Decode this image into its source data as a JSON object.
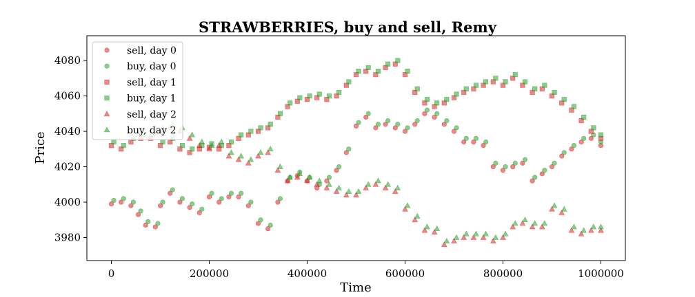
{
  "chart_data": {
    "type": "scatter",
    "title": "STRAWBERRIES, buy and sell, Remy",
    "xlabel": "Time",
    "ylabel": "Price",
    "xlim": [
      -50000,
      1050000
    ],
    "ylim": [
      3967,
      4094
    ],
    "xticks": [
      0,
      200000,
      400000,
      600000,
      800000,
      1000000
    ],
    "xtick_labels": [
      "0",
      "200000",
      "400000",
      "600000",
      "800000",
      "1000000"
    ],
    "yticks": [
      3980,
      4000,
      4020,
      4040,
      4060,
      4080
    ],
    "ytick_labels": [
      "3980",
      "4000",
      "4020",
      "4040",
      "4060",
      "4080"
    ],
    "grid": false,
    "legend_position": "upper-left",
    "colors": {
      "sell": "#d62728",
      "buy": "#2ca02c"
    },
    "series": [
      {
        "name": "sell, day 0",
        "marker": "circle",
        "color": "#d62728",
        "x": [
          0,
          20000,
          40000,
          55000,
          70000,
          90000,
          100000,
          120000,
          140000,
          160000,
          180000,
          200000,
          220000,
          240000,
          260000,
          280000,
          300000,
          320000,
          340000,
          360000,
          380000,
          400000,
          420000,
          440000,
          460000,
          480000,
          500000,
          520000,
          540000,
          560000,
          580000,
          600000,
          620000,
          640000,
          660000,
          680000,
          700000,
          720000,
          740000,
          760000,
          780000,
          800000,
          820000,
          840000,
          860000,
          880000,
          900000,
          920000,
          940000,
          960000,
          980000,
          1000000
        ],
        "y": [
          3999,
          4000,
          3998,
          3993,
          3987,
          3986,
          3998,
          4005,
          4000,
          3997,
          3994,
          4003,
          4000,
          4003,
          4003,
          3998,
          3988,
          3985,
          4000,
          4012,
          4015,
          4012,
          4008,
          4012,
          4018,
          4028,
          4043,
          4048,
          4042,
          4044,
          4042,
          4040,
          4044,
          4050,
          4048,
          4044,
          4040,
          4034,
          4034,
          4032,
          4020,
          4018,
          4020,
          4022,
          4012,
          4016,
          4020,
          4026,
          4030,
          4034,
          4036,
          4032
        ]
      },
      {
        "name": "buy, day 0",
        "marker": "circle",
        "color": "#2ca02c",
        "x": [
          5000,
          25000,
          45000,
          60000,
          75000,
          95000,
          105000,
          125000,
          145000,
          165000,
          185000,
          205000,
          225000,
          245000,
          265000,
          285000,
          305000,
          325000,
          345000,
          365000,
          385000,
          405000,
          425000,
          445000,
          465000,
          485000,
          505000,
          525000,
          545000,
          565000,
          585000,
          605000,
          625000,
          645000,
          665000,
          685000,
          705000,
          725000,
          745000,
          765000,
          785000,
          805000,
          825000,
          845000,
          865000,
          885000,
          905000,
          925000,
          945000,
          965000,
          985000,
          1000000
        ],
        "y": [
          4001,
          4002,
          4000,
          3995,
          3989,
          3988,
          4000,
          4007,
          4002,
          3999,
          3996,
          4005,
          4002,
          4005,
          4005,
          4000,
          3990,
          3987,
          4002,
          4014,
          4017,
          4014,
          4010,
          4014,
          4020,
          4030,
          4045,
          4050,
          4044,
          4046,
          4044,
          4042,
          4046,
          4052,
          4050,
          4046,
          4042,
          4036,
          4036,
          4034,
          4022,
          4020,
          4022,
          4024,
          4014,
          4018,
          4022,
          4028,
          4032,
          4036,
          4038,
          4034
        ]
      },
      {
        "name": "sell, day 1",
        "marker": "square",
        "color": "#d62728",
        "x": [
          0,
          20000,
          40000,
          60000,
          80000,
          100000,
          120000,
          140000,
          160000,
          180000,
          200000,
          220000,
          240000,
          260000,
          280000,
          300000,
          320000,
          340000,
          360000,
          380000,
          400000,
          420000,
          440000,
          460000,
          480000,
          500000,
          520000,
          540000,
          560000,
          580000,
          600000,
          620000,
          640000,
          660000,
          680000,
          700000,
          720000,
          740000,
          760000,
          780000,
          800000,
          820000,
          840000,
          860000,
          880000,
          900000,
          920000,
          940000,
          960000,
          980000,
          1000000
        ],
        "y": [
          4032,
          4030,
          4034,
          4036,
          4036,
          4032,
          4034,
          4030,
          4028,
          4030,
          4031,
          4030,
          4032,
          4036,
          4038,
          4040,
          4042,
          4048,
          4054,
          4057,
          4058,
          4059,
          4058,
          4060,
          4066,
          4072,
          4074,
          4072,
          4076,
          4078,
          4072,
          4062,
          4056,
          4054,
          4056,
          4059,
          4062,
          4064,
          4066,
          4068,
          4066,
          4070,
          4066,
          4062,
          4064,
          4060,
          4056,
          4052,
          4046,
          4040,
          4036
        ]
      },
      {
        "name": "buy, day 1",
        "marker": "square",
        "color": "#2ca02c",
        "x": [
          5000,
          25000,
          45000,
          65000,
          85000,
          105000,
          125000,
          145000,
          165000,
          185000,
          205000,
          225000,
          245000,
          265000,
          285000,
          305000,
          325000,
          345000,
          365000,
          385000,
          405000,
          425000,
          445000,
          465000,
          485000,
          505000,
          525000,
          545000,
          565000,
          585000,
          605000,
          625000,
          645000,
          665000,
          685000,
          705000,
          725000,
          745000,
          765000,
          785000,
          805000,
          825000,
          845000,
          865000,
          885000,
          905000,
          925000,
          945000,
          965000,
          985000,
          1000000
        ],
        "y": [
          4034,
          4032,
          4036,
          4038,
          4038,
          4034,
          4036,
          4032,
          4030,
          4032,
          4033,
          4032,
          4034,
          4038,
          4040,
          4042,
          4044,
          4050,
          4056,
          4059,
          4060,
          4061,
          4060,
          4062,
          4068,
          4074,
          4076,
          4074,
          4078,
          4080,
          4074,
          4064,
          4058,
          4056,
          4058,
          4061,
          4064,
          4066,
          4068,
          4070,
          4068,
          4072,
          4068,
          4064,
          4066,
          4062,
          4058,
          4054,
          4048,
          4042,
          4038
        ]
      },
      {
        "name": "sell, day 2",
        "marker": "triangle",
        "color": "#d62728",
        "x": [
          100000,
          120000,
          140000,
          160000,
          180000,
          200000,
          220000,
          240000,
          260000,
          280000,
          300000,
          320000,
          340000,
          360000,
          380000,
          400000,
          420000,
          440000,
          460000,
          480000,
          500000,
          520000,
          540000,
          560000,
          580000,
          600000,
          620000,
          640000,
          660000,
          680000,
          700000,
          720000,
          740000,
          760000,
          780000,
          800000,
          820000,
          840000,
          860000,
          880000,
          900000,
          920000,
          940000,
          960000,
          980000,
          1000000
        ],
        "y": [
          4040,
          4042,
          4040,
          4036,
          4032,
          4030,
          4032,
          4026,
          4024,
          4022,
          4026,
          4028,
          4018,
          4012,
          4014,
          4012,
          4010,
          4008,
          4006,
          4004,
          4004,
          4008,
          4010,
          4008,
          4006,
          3996,
          3990,
          3984,
          3983,
          3976,
          3978,
          3980,
          3980,
          3980,
          3978,
          3980,
          3986,
          3988,
          3986,
          3986,
          3996,
          3994,
          3984,
          3982,
          3984,
          3984
        ]
      },
      {
        "name": "buy, day 2",
        "marker": "triangle",
        "color": "#2ca02c",
        "x": [
          105000,
          125000,
          145000,
          165000,
          185000,
          205000,
          225000,
          245000,
          265000,
          285000,
          305000,
          325000,
          345000,
          365000,
          385000,
          405000,
          425000,
          445000,
          465000,
          485000,
          505000,
          525000,
          545000,
          565000,
          585000,
          605000,
          625000,
          645000,
          665000,
          685000,
          705000,
          725000,
          745000,
          765000,
          785000,
          805000,
          825000,
          845000,
          865000,
          885000,
          905000,
          925000,
          945000,
          965000,
          985000,
          1000000
        ],
        "y": [
          4042,
          4044,
          4042,
          4038,
          4034,
          4032,
          4034,
          4028,
          4026,
          4024,
          4028,
          4030,
          4020,
          4014,
          4016,
          4014,
          4012,
          4010,
          4008,
          4006,
          4006,
          4010,
          4012,
          4010,
          4008,
          3998,
          3992,
          3986,
          3985,
          3978,
          3980,
          3982,
          3982,
          3982,
          3980,
          3982,
          3988,
          3990,
          3988,
          3988,
          3998,
          3996,
          3986,
          3984,
          3986,
          3986
        ]
      }
    ]
  }
}
